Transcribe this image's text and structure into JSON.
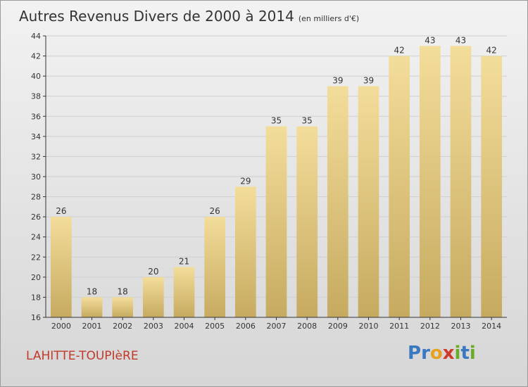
{
  "header": {
    "title": "Autres Revenus Divers de 2000 à 2014",
    "unit": "(en milliers d'€)"
  },
  "footer": {
    "commune": "LAHITTE-TOUPIèRE",
    "brand": "Proxiti",
    "brand_letters": [
      {
        "ch": "P",
        "color": "#3a78c2"
      },
      {
        "ch": "r",
        "color": "#3a78c2"
      },
      {
        "ch": "o",
        "color": "#e8a020"
      },
      {
        "ch": "x",
        "color": "#d03a2a"
      },
      {
        "ch": "i",
        "color": "#6aab2a"
      },
      {
        "ch": "t",
        "color": "#3a78c2"
      },
      {
        "ch": "i",
        "color": "#6aab2a"
      }
    ]
  },
  "chart_data": {
    "type": "bar",
    "title": "Autres Revenus Divers de 2000 à 2014",
    "subtitle": "(en milliers d'€)",
    "xlabel": "",
    "ylabel": "",
    "categories": [
      "2000",
      "2001",
      "2002",
      "2003",
      "2004",
      "2005",
      "2006",
      "2007",
      "2008",
      "2009",
      "2010",
      "2011",
      "2012",
      "2013",
      "2014"
    ],
    "values": [
      26,
      18,
      18,
      20,
      21,
      26,
      29,
      35,
      35,
      39,
      39,
      42,
      43,
      43,
      42
    ],
    "ylim": [
      16,
      44
    ],
    "yticks": [
      16,
      18,
      20,
      22,
      24,
      26,
      28,
      30,
      32,
      34,
      36,
      38,
      40,
      42,
      44
    ],
    "grid": true,
    "legend": "none",
    "colors": {
      "bar_top": "#f3dd9a",
      "bar_bottom": "#c6aa60",
      "grid": "#cfcfcf",
      "axis": "#333333",
      "label_text": "#333333"
    }
  }
}
